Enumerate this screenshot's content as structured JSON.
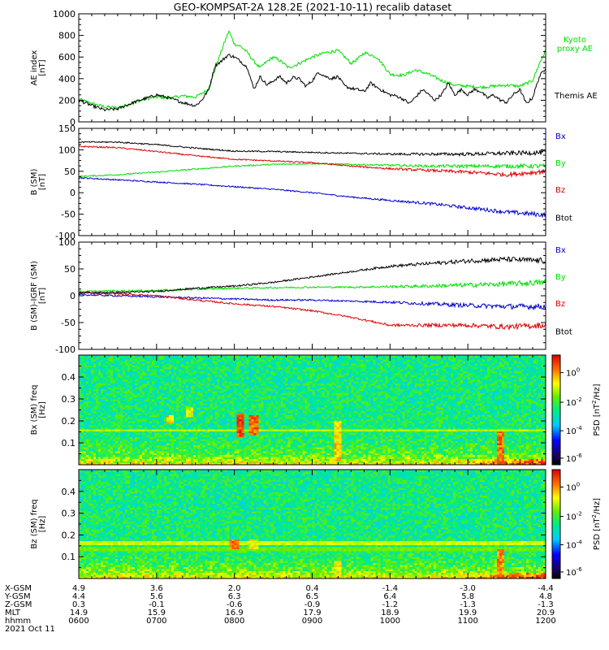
{
  "title": "GEO-KOMPSAT-2A 128.2E (2021-10-11) recalib dataset",
  "colors": {
    "black": "#000000",
    "green": "#00dd00",
    "blue": "#0000cc",
    "red": "#dd0000"
  },
  "chart_data": [
    {
      "type": "line",
      "ylabel": "AE index [nT]",
      "ylim": [
        0,
        1000
      ],
      "yticks": [
        "0",
        "200",
        "400",
        "600",
        "800",
        "1000"
      ],
      "legend": [
        {
          "text": "Kyoto proxy AE",
          "lines": [
            "Kyoto",
            "proxy AE"
          ],
          "color": "#00dd00"
        },
        {
          "text": "Themis AE",
          "lines": [
            "Themis AE"
          ],
          "color": "#000000"
        }
      ],
      "series": [
        {
          "name": "Kyoto proxy AE",
          "color": "#00dd00",
          "x": [
            6.0,
            6.17,
            6.33,
            6.5,
            6.67,
            6.83,
            7.0,
            7.17,
            7.33,
            7.5,
            7.67,
            7.78,
            7.88,
            7.93,
            8.0,
            8.08,
            8.17,
            8.25,
            8.33,
            8.42,
            8.5,
            8.6,
            8.7,
            8.83,
            9.0,
            9.17,
            9.33,
            9.42,
            9.5,
            9.58,
            9.67,
            9.75,
            9.83,
            9.92,
            10.0,
            10.17,
            10.33,
            10.5,
            10.67,
            10.83,
            11.0,
            11.17,
            11.33,
            11.5,
            11.67,
            11.83,
            11.92,
            12.0
          ],
          "y": [
            210,
            170,
            140,
            130,
            170,
            210,
            230,
            220,
            240,
            230,
            300,
            550,
            750,
            840,
            720,
            700,
            640,
            560,
            500,
            560,
            600,
            560,
            500,
            540,
            600,
            640,
            660,
            600,
            540,
            580,
            640,
            620,
            600,
            520,
            440,
            430,
            480,
            440,
            380,
            340,
            330,
            320,
            330,
            340,
            330,
            380,
            540,
            660
          ]
        },
        {
          "name": "Themis AE",
          "color": "#000000",
          "x": [
            6.0,
            6.17,
            6.33,
            6.5,
            6.67,
            6.83,
            7.0,
            7.17,
            7.33,
            7.5,
            7.58,
            7.67,
            7.75,
            7.83,
            7.92,
            8.0,
            8.08,
            8.17,
            8.25,
            8.33,
            8.42,
            8.5,
            8.58,
            8.67,
            8.75,
            8.83,
            8.92,
            9.0,
            9.08,
            9.17,
            9.25,
            9.33,
            9.42,
            9.5,
            9.58,
            9.67,
            9.75,
            9.83,
            9.92,
            10.0,
            10.08,
            10.17,
            10.25,
            10.33,
            10.42,
            10.5,
            10.58,
            10.67,
            10.75,
            10.83,
            10.92,
            11.0,
            11.08,
            11.17,
            11.25,
            11.33,
            11.42,
            11.5,
            11.58,
            11.67,
            11.75,
            11.83,
            11.92,
            12.0
          ],
          "y": [
            200,
            150,
            110,
            120,
            170,
            210,
            250,
            220,
            180,
            150,
            200,
            300,
            520,
            560,
            620,
            600,
            560,
            500,
            300,
            420,
            340,
            380,
            420,
            360,
            410,
            400,
            330,
            380,
            460,
            420,
            400,
            420,
            330,
            310,
            300,
            280,
            360,
            320,
            280,
            250,
            240,
            210,
            170,
            230,
            300,
            250,
            200,
            260,
            360,
            250,
            300,
            250,
            300,
            280,
            220,
            250,
            200,
            180,
            250,
            300,
            170,
            220,
            420,
            500
          ]
        }
      ]
    },
    {
      "type": "line",
      "ylabel": "B (SM) [nT]",
      "ylim": [
        -100,
        150
      ],
      "yticks": [
        "-100",
        "-50",
        "0",
        "50",
        "100",
        "150"
      ],
      "legend": [
        {
          "text": "Bx",
          "lines": [
            "Bx"
          ],
          "color": "#0000cc"
        },
        {
          "text": "By",
          "lines": [
            "By"
          ],
          "color": "#00dd00"
        },
        {
          "text": "Bz",
          "lines": [
            "Bz"
          ],
          "color": "#dd0000"
        },
        {
          "text": "Btot",
          "lines": [
            "Btot"
          ],
          "color": "#000000"
        }
      ],
      "series": [
        {
          "name": "Bx",
          "color": "#0000cc",
          "x": [
            6.0,
            6.5,
            7.0,
            7.5,
            8.0,
            8.5,
            9.0,
            9.5,
            10.0,
            10.5,
            11.0,
            11.5,
            12.0
          ],
          "y": [
            35,
            30,
            25,
            20,
            14,
            8,
            0,
            -10,
            -18,
            -25,
            -35,
            -45,
            -52
          ]
        },
        {
          "name": "By",
          "color": "#00dd00",
          "x": [
            6.0,
            6.5,
            7.0,
            7.5,
            8.0,
            8.5,
            9.0,
            9.5,
            10.0,
            10.5,
            11.0,
            11.5,
            12.0
          ],
          "y": [
            38,
            42,
            48,
            55,
            62,
            66,
            68,
            66,
            64,
            62,
            62,
            62,
            62
          ]
        },
        {
          "name": "Bz",
          "color": "#dd0000",
          "x": [
            6.0,
            6.5,
            7.0,
            7.5,
            8.0,
            8.5,
            9.0,
            9.5,
            10.0,
            10.5,
            11.0,
            11.5,
            12.0
          ],
          "y": [
            108,
            105,
            96,
            86,
            78,
            74,
            70,
            62,
            56,
            52,
            48,
            42,
            50
          ]
        },
        {
          "name": "Btot",
          "color": "#000000",
          "x": [
            6.0,
            6.5,
            7.0,
            7.5,
            8.0,
            8.5,
            9.0,
            9.5,
            10.0,
            10.5,
            11.0,
            11.5,
            12.0
          ],
          "y": [
            118,
            118,
            112,
            104,
            97,
            96,
            94,
            92,
            90,
            90,
            90,
            92,
            94
          ]
        }
      ]
    },
    {
      "type": "line",
      "ylabel": "B (SM)-IGRF (SM) [nT]",
      "ylim": [
        -100,
        100
      ],
      "yticks": [
        "-100",
        "-50",
        "0",
        "50",
        "100"
      ],
      "legend": [
        {
          "text": "Bx",
          "lines": [
            "Bx"
          ],
          "color": "#0000cc"
        },
        {
          "text": "By",
          "lines": [
            "By"
          ],
          "color": "#00dd00"
        },
        {
          "text": "Bz",
          "lines": [
            "Bz"
          ],
          "color": "#dd0000"
        },
        {
          "text": "Btot",
          "lines": [
            "Btot"
          ],
          "color": "#000000"
        }
      ],
      "series": [
        {
          "name": "Bx",
          "color": "#0000cc",
          "x": [
            6.0,
            6.5,
            7.0,
            7.5,
            8.0,
            8.5,
            9.0,
            9.5,
            10.0,
            10.5,
            11.0,
            11.5,
            12.0
          ],
          "y": [
            2,
            0,
            -2,
            -4,
            -6,
            -8,
            -8,
            -10,
            -12,
            -15,
            -18,
            -20,
            -20
          ]
        },
        {
          "name": "By",
          "color": "#00dd00",
          "x": [
            6.0,
            6.5,
            7.0,
            7.5,
            8.0,
            8.5,
            9.0,
            9.5,
            10.0,
            10.5,
            11.0,
            11.5,
            12.0
          ],
          "y": [
            8,
            9,
            10,
            12,
            14,
            15,
            16,
            16,
            17,
            18,
            20,
            22,
            25
          ]
        },
        {
          "name": "Bz",
          "color": "#dd0000",
          "x": [
            6.0,
            6.5,
            7.0,
            7.5,
            8.0,
            8.5,
            9.0,
            9.5,
            10.0,
            10.5,
            11.0,
            11.5,
            12.0
          ],
          "y": [
            5,
            4,
            0,
            -8,
            -15,
            -20,
            -28,
            -40,
            -55,
            -55,
            -55,
            -58,
            -55
          ]
        },
        {
          "name": "Btot",
          "color": "#000000",
          "x": [
            6.0,
            6.5,
            7.0,
            7.5,
            8.0,
            8.5,
            9.0,
            9.5,
            10.0,
            10.5,
            11.0,
            11.5,
            12.0
          ],
          "y": [
            6,
            6,
            8,
            14,
            18,
            25,
            35,
            45,
            55,
            60,
            65,
            68,
            65
          ]
        }
      ]
    },
    {
      "type": "heatmap",
      "ylabel": "Bx (SM) freq [Hz]",
      "ylim": [
        0,
        0.5
      ],
      "yticks": [
        "0.1",
        "0.2",
        "0.3",
        "0.4"
      ],
      "colorbar_label": "PSD [nT^2/Hz]",
      "colorbar_ticks": [
        "10^0",
        "10^-2",
        "10^-4",
        "10^-6"
      ],
      "bursts": [
        {
          "x": 8.08,
          "fmin": 0.13,
          "fmax": 0.24,
          "level": 1.0
        },
        {
          "x": 8.25,
          "fmin": 0.14,
          "fmax": 0.23,
          "level": 0.95
        },
        {
          "x": 7.17,
          "fmin": 0.19,
          "fmax": 0.23,
          "level": 0.85
        },
        {
          "x": 7.42,
          "fmin": 0.22,
          "fmax": 0.26,
          "level": 0.8
        },
        {
          "x": 9.33,
          "fmin": 0.02,
          "fmax": 0.2,
          "level": 0.85
        },
        {
          "x": 11.42,
          "fmin": 0.0,
          "fmax": 0.15,
          "level": 0.95
        }
      ],
      "lines": [
        {
          "f": 0.16,
          "level": 0.68
        }
      ]
    },
    {
      "type": "heatmap",
      "ylabel": "Bz (SM) freq [Hz]",
      "ylim": [
        0,
        0.5
      ],
      "yticks": [
        "0.1",
        "0.2",
        "0.3",
        "0.4"
      ],
      "colorbar_label": "PSD [nT^2/Hz]",
      "colorbar_ticks": [
        "10^0",
        "10^-2",
        "10^-4",
        "10^-6"
      ],
      "bursts": [
        {
          "x": 8.0,
          "fmin": 0.14,
          "fmax": 0.18,
          "level": 0.95
        },
        {
          "x": 8.25,
          "fmin": 0.14,
          "fmax": 0.18,
          "level": 0.8
        },
        {
          "x": 11.42,
          "fmin": 0.0,
          "fmax": 0.14,
          "level": 0.92
        },
        {
          "x": 9.33,
          "fmin": 0.0,
          "fmax": 0.08,
          "level": 0.8
        }
      ],
      "lines": [
        {
          "f": 0.165,
          "level": 0.7
        },
        {
          "f": 0.135,
          "level": 0.62
        }
      ]
    }
  ],
  "xaxis": {
    "xlim": [
      6.0,
      12.0
    ],
    "tick_hours": [
      6,
      7,
      8,
      9,
      10,
      11,
      12
    ],
    "rows": [
      {
        "label": "X-GSM",
        "values": [
          "4.9",
          "3.6",
          "2.0",
          "0.4",
          "-1.4",
          "-3.0",
          "-4.4"
        ]
      },
      {
        "label": "Y-GSM",
        "values": [
          "4.4",
          "5.6",
          "6.3",
          "6.5",
          "6.4",
          "5.8",
          "4.8"
        ]
      },
      {
        "label": "Z-GSM",
        "values": [
          "0.3",
          "-0.1",
          "-0.6",
          "-0.9",
          "-1.2",
          "-1.3",
          "-1.3"
        ]
      },
      {
        "label": "MLT",
        "values": [
          "14.9",
          "15.9",
          "16.9",
          "17.9",
          "18.9",
          "19.9",
          "20.9"
        ]
      },
      {
        "label": "hhmm",
        "values": [
          "0600",
          "0700",
          "0800",
          "0900",
          "1000",
          "1100",
          "1200"
        ]
      }
    ],
    "date": "2021 Oct 11"
  }
}
